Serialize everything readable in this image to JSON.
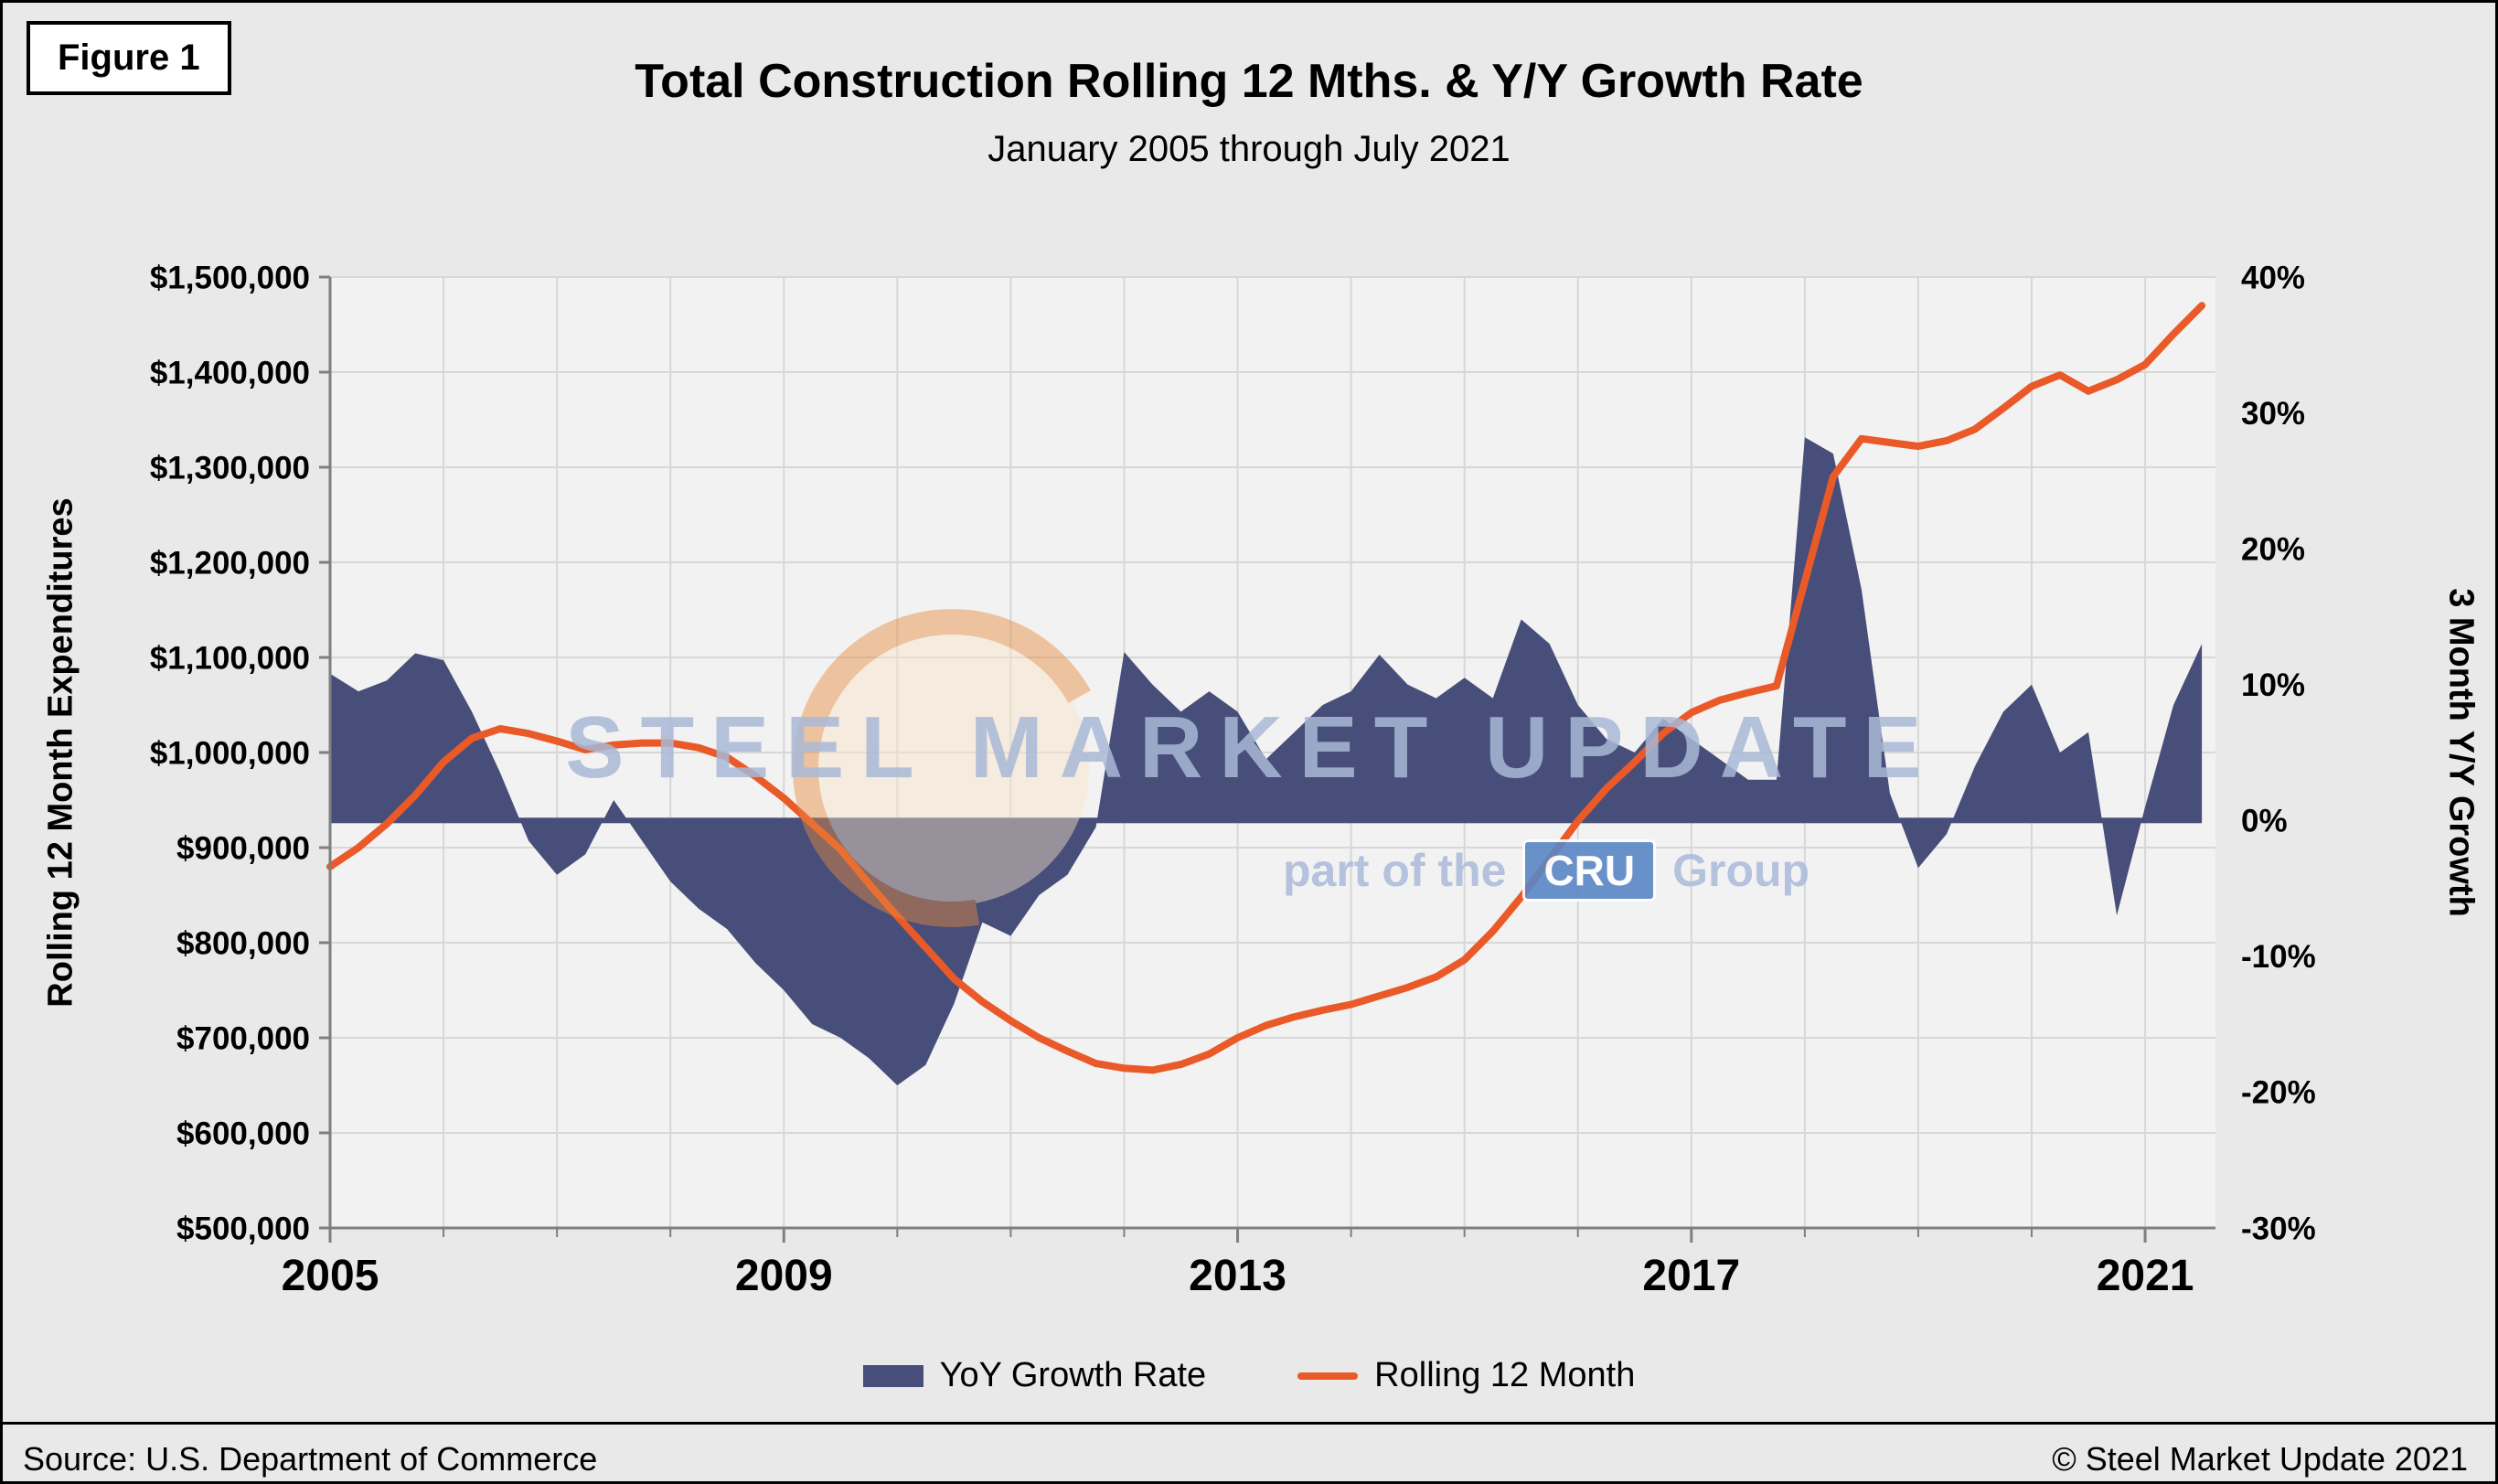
{
  "figure_label": "Figure 1",
  "header": {
    "title": "Total Construction Rolling 12 Mths. & Y/Y Growth Rate",
    "subtitle": "January 2005 through July 2021"
  },
  "axes": {
    "left_title": "Rolling 12 Month Expenditures",
    "right_title": "3 Month Y/Y Growth",
    "left_ticks": [
      "$500,000",
      "$600,000",
      "$700,000",
      "$800,000",
      "$900,000",
      "$1,000,000",
      "$1,100,000",
      "$1,200,000",
      "$1,300,000",
      "$1,400,000",
      "$1,500,000"
    ],
    "right_ticks": [
      "-30%",
      "-20%",
      "-10%",
      "0%",
      "10%",
      "20%",
      "30%",
      "40%"
    ],
    "x_ticks": [
      "2005",
      "2009",
      "2013",
      "2017",
      "2021"
    ]
  },
  "legend": {
    "items": [
      {
        "label": "YoY Growth Rate",
        "color": "#474e7a",
        "type": "area"
      },
      {
        "label": "Rolling 12 Month",
        "color": "#ea5a28",
        "type": "line"
      }
    ]
  },
  "watermark": {
    "line1": "STEEL MARKET UPDATE",
    "line2_prefix": "part of the",
    "line2_box": "CRU",
    "line2_suffix": "Group",
    "cru_blue": "#5b87c5",
    "text_blue": "#a9b9d6",
    "circle_orange": "#e78a3c",
    "circle_cream": "#f9e3c6"
  },
  "footer": {
    "source": "Source: U.S. Department of Commerce",
    "copyright": "© Steel Market Update 2021"
  },
  "chart_data": {
    "type": "combo",
    "title": "Total Construction Rolling 12 Mths. & Y/Y Growth Rate",
    "subtitle": "January 2005 through July 2021",
    "x_label_years": [
      2005,
      2009,
      2013,
      2017,
      2021
    ],
    "x_range": [
      2005.0,
      2021.62
    ],
    "grid": true,
    "legend_position": "bottom",
    "left_axis": {
      "label": "Rolling 12 Month Expenditures",
      "range": [
        500000,
        1500000
      ],
      "tick_step": 100000,
      "unit": "$"
    },
    "right_axis": {
      "label": "3 Month Y/Y Growth",
      "range": [
        -30,
        40
      ],
      "tick_step": 10,
      "unit": "%"
    },
    "baseline_pct": 0,
    "x": [
      2005.0,
      2005.25,
      2005.5,
      2005.75,
      2006.0,
      2006.25,
      2006.5,
      2006.75,
      2007.0,
      2007.25,
      2007.5,
      2007.75,
      2008.0,
      2008.25,
      2008.5,
      2008.75,
      2009.0,
      2009.25,
      2009.5,
      2009.75,
      2010.0,
      2010.25,
      2010.5,
      2010.75,
      2011.0,
      2011.25,
      2011.5,
      2011.75,
      2012.0,
      2012.25,
      2012.5,
      2012.75,
      2013.0,
      2013.25,
      2013.5,
      2013.75,
      2014.0,
      2014.25,
      2014.5,
      2014.75,
      2015.0,
      2015.25,
      2015.5,
      2015.75,
      2016.0,
      2016.25,
      2016.5,
      2016.75,
      2017.0,
      2017.25,
      2017.5,
      2017.75,
      2018.0,
      2018.25,
      2018.5,
      2018.75,
      2019.0,
      2019.25,
      2019.5,
      2019.75,
      2020.0,
      2020.25,
      2020.5,
      2020.75,
      2021.0,
      2021.25,
      2021.5
    ],
    "series": [
      {
        "name": "YoY Growth Rate",
        "type": "area",
        "axis": "right",
        "color": "#474e7a",
        "values": [
          10.8,
          9.5,
          10.3,
          12.3,
          11.8,
          8.0,
          3.5,
          -1.5,
          -4.0,
          -2.5,
          1.5,
          -1.5,
          -4.5,
          -6.5,
          -8.0,
          -10.5,
          -12.5,
          -15.0,
          -16.0,
          -17.5,
          -19.5,
          -18.0,
          -13.5,
          -7.5,
          -8.5,
          -5.5,
          -4.0,
          -0.5,
          12.4,
          10.0,
          8.0,
          9.5,
          8.0,
          4.5,
          6.5,
          8.5,
          9.5,
          12.2,
          10.0,
          9.0,
          10.5,
          9.0,
          14.8,
          13.0,
          8.5,
          6.0,
          5.0,
          7.5,
          6.0,
          4.5,
          3.0,
          3.0,
          28.2,
          27.0,
          17.0,
          2.0,
          -3.5,
          -1.0,
          4.0,
          8.0,
          10.0,
          5.0,
          6.5,
          -7.0,
          1.0,
          8.5,
          13.0
        ]
      },
      {
        "name": "Rolling 12 Month",
        "type": "line",
        "axis": "left",
        "color": "#ea5a28",
        "values": [
          880000,
          900000,
          925000,
          955000,
          990000,
          1015000,
          1025000,
          1020000,
          1012000,
          1003000,
          1008000,
          1010000,
          1010000,
          1005000,
          995000,
          975000,
          952000,
          925000,
          898000,
          862000,
          828000,
          795000,
          762000,
          738000,
          718000,
          700000,
          686000,
          673000,
          668000,
          666000,
          672000,
          683000,
          700000,
          713000,
          722000,
          729000,
          735000,
          744000,
          753000,
          764000,
          782000,
          812000,
          848000,
          888000,
          928000,
          962000,
          990000,
          1020000,
          1042000,
          1055000,
          1063000,
          1070000,
          1180000,
          1290000,
          1330000,
          1326000,
          1322000,
          1328000,
          1340000,
          1362000,
          1385000,
          1397000,
          1380000,
          1392000,
          1408000,
          1440000,
          1470000
        ]
      }
    ]
  }
}
